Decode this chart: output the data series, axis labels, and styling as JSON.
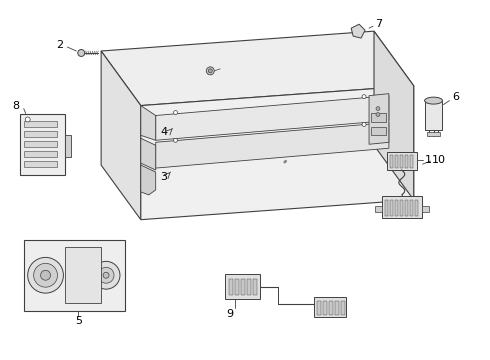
{
  "background_color": "#ffffff",
  "line_color": "#404040",
  "label_color": "#000000",
  "light_fill": "#f2f2f2",
  "mid_fill": "#e0e0e0",
  "dark_fill": "#c8c8c8"
}
